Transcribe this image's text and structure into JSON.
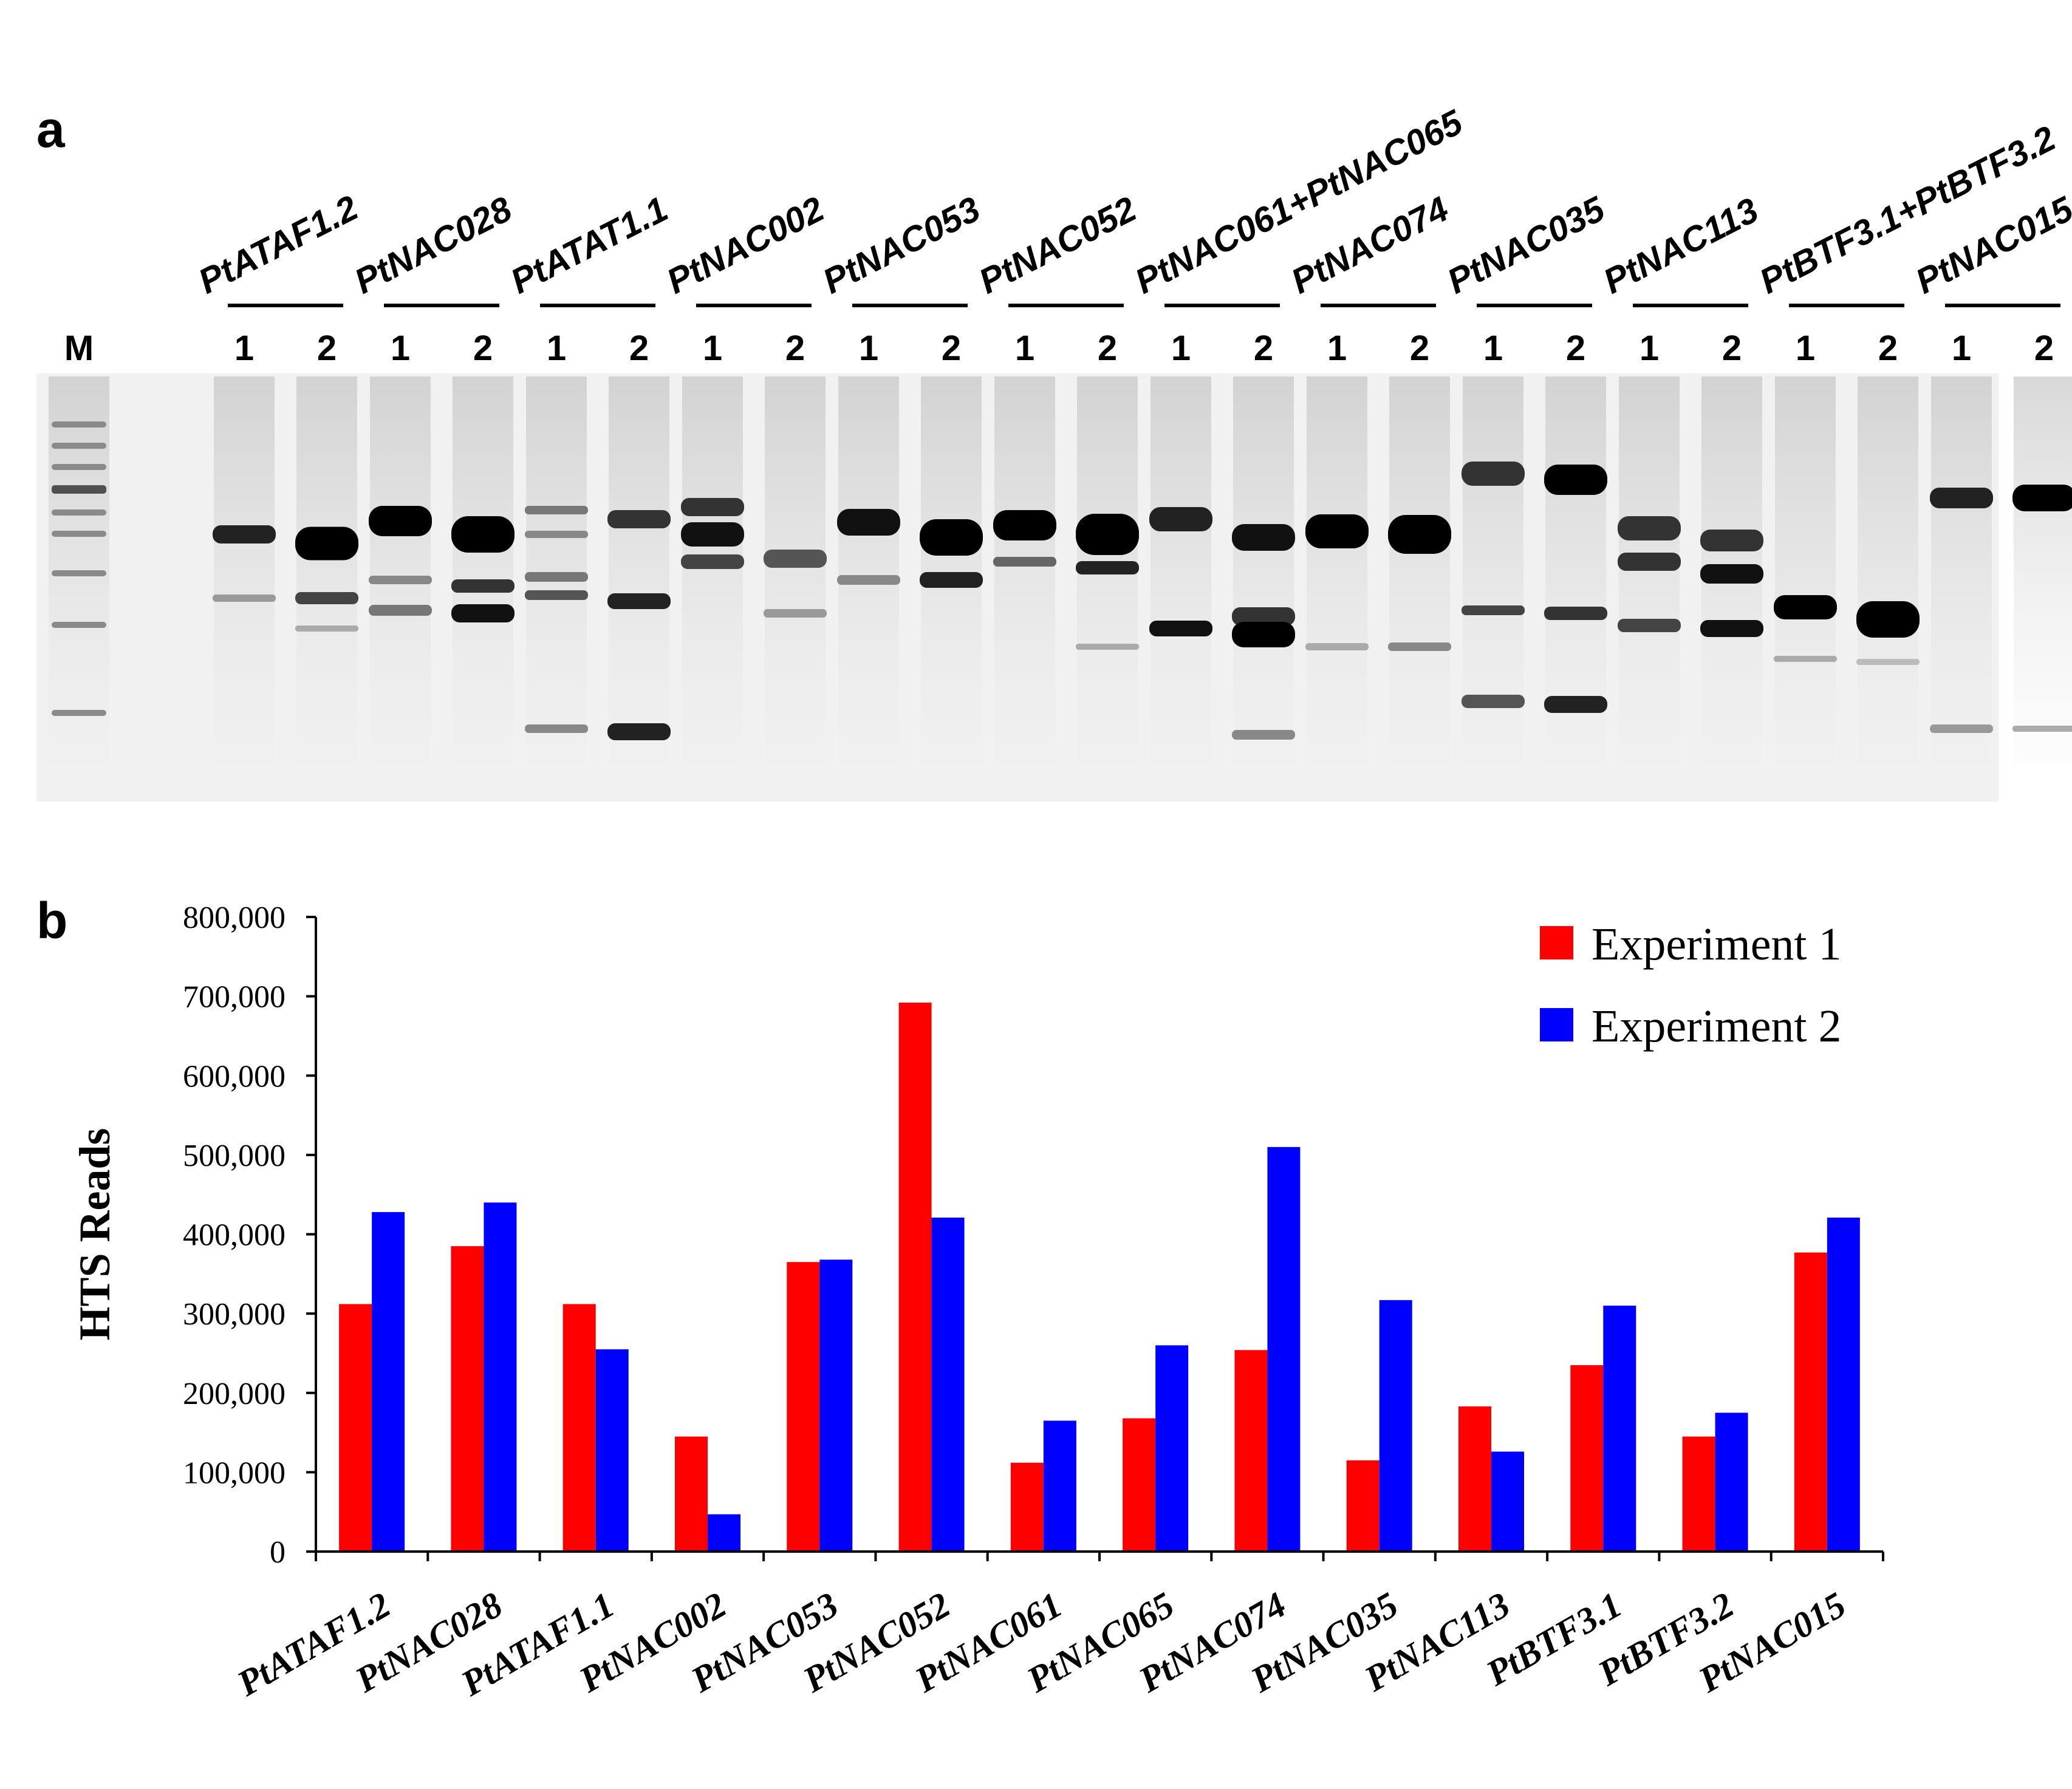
{
  "panels": {
    "a": "a",
    "b": "b"
  },
  "gel": {
    "marker_label": "M",
    "lane_labels": [
      "1",
      "2"
    ],
    "groups": [
      "PtATAF1.2",
      "PtNAC028",
      "PtATAT1.1",
      "PtNAC002",
      "PtNAC053",
      "PtNAC052",
      "PtNAC061+PtNAC065",
      "PtNAC074",
      "PtNAC035",
      "PtNAC113",
      "PtBTF3.1+PtBTF3.2",
      "PtNAC015"
    ]
  },
  "chart_data": {
    "type": "bar",
    "title": "",
    "xlabel": "",
    "ylabel": "HTS Reads",
    "ylim": [
      0,
      800000
    ],
    "yticks": [
      0,
      100000,
      200000,
      300000,
      400000,
      500000,
      600000,
      700000,
      800000
    ],
    "ytick_labels": [
      "0",
      "100,000",
      "200,000",
      "300,000",
      "400,000",
      "500,000",
      "600,000",
      "700,000",
      "800,000"
    ],
    "categories": [
      "PtATAF1.2",
      "PtNAC028",
      "PtATAF1.1",
      "PtNAC002",
      "PtNAC053",
      "PtNAC052",
      "PtNAC061",
      "PtNAC065",
      "PtNAC074",
      "PtNAC035",
      "PtNAC113",
      "PtBTF3.1",
      "PtBTF3.2",
      "PtNAC015"
    ],
    "series": [
      {
        "name": "Experiment 1",
        "color": "#ff0000",
        "values": [
          312000,
          385000,
          312000,
          145000,
          365000,
          692000,
          112000,
          168000,
          254000,
          115000,
          183000,
          235000,
          145000,
          377000
        ]
      },
      {
        "name": "Experiment 2",
        "color": "#0000ff",
        "values": [
          428000,
          440000,
          255000,
          47000,
          368000,
          421000,
          165000,
          260000,
          510000,
          317000,
          126000,
          310000,
          175000,
          421000
        ]
      }
    ],
    "grid": false,
    "legend_position": "top-right"
  }
}
